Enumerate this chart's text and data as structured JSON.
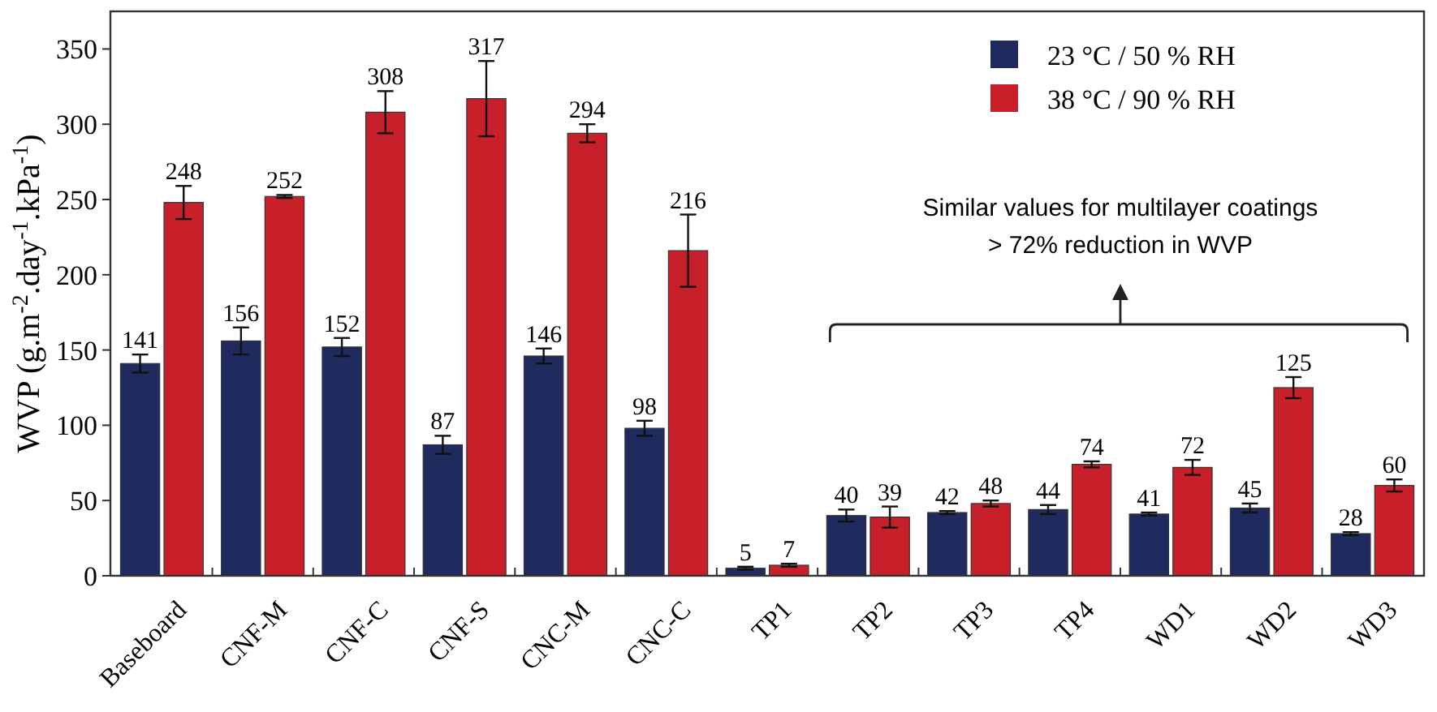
{
  "chart_data": {
    "type": "bar",
    "ylabel": "WVP (g.m$^{-2}$.day$^{-1}$.kPa$^{-1}$)",
    "categories": [
      "Baseboard",
      "CNF-M",
      "CNF-C",
      "CNF-S",
      "CNC-M",
      "CNC-C",
      "TP1",
      "TP2",
      "TP3",
      "TP4",
      "WD1",
      "WD2",
      "WD3"
    ],
    "series": [
      {
        "name": "23 °C / 50 % RH",
        "color": "#1f2a5e",
        "values": [
          141,
          156,
          152,
          87,
          146,
          98,
          5,
          40,
          42,
          44,
          41,
          45,
          28
        ],
        "errors": [
          6,
          9,
          6,
          6,
          5,
          5,
          1,
          4,
          1,
          3,
          1,
          3,
          1
        ]
      },
      {
        "name": "38 °C / 90 % RH",
        "color": "#c8202a",
        "values": [
          248,
          252,
          308,
          317,
          294,
          216,
          7,
          39,
          48,
          74,
          72,
          125,
          60
        ],
        "errors": [
          11,
          1,
          14,
          25,
          6,
          24,
          1,
          7,
          2,
          2,
          5,
          7,
          4
        ]
      }
    ],
    "ylim": [
      0,
      375
    ],
    "yticks": [
      0,
      50,
      100,
      150,
      200,
      250,
      300,
      350
    ],
    "data_labels": true,
    "legend": "top right",
    "grid": false,
    "annotations": [
      "Similar values for multilayer coatings",
      "> 72% reduction in WVP"
    ]
  }
}
